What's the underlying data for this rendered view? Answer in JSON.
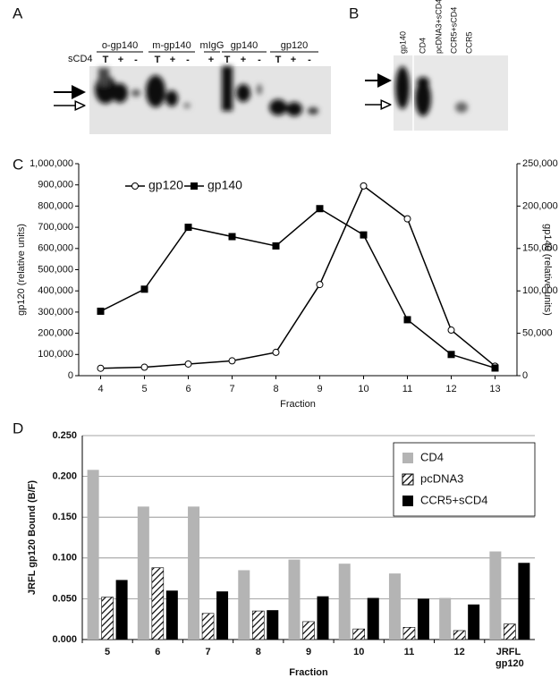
{
  "panels": {
    "A": {
      "label": "A",
      "row_label": "sCD4",
      "groups": [
        "o-gp140",
        "m-gp140",
        "mIgG",
        "gp140",
        "gp120"
      ],
      "lanes": [
        "T",
        "+",
        "-",
        "T",
        "+",
        "-",
        "+",
        "T",
        "+",
        "-",
        "T",
        "+",
        "-"
      ]
    },
    "B": {
      "label": "B",
      "lanes": [
        "gp140",
        "CD4",
        "pcDNA3+sCD4",
        "CCR5+sCD4",
        "CCR5"
      ]
    }
  },
  "chart_data": [
    {
      "type": "line",
      "panel_label": "C",
      "x_label": "Fraction",
      "y_label": "gp120 (relative units)",
      "y2_label": "gp140 (relative units)",
      "categories": [
        "4",
        "5",
        "6",
        "7",
        "8",
        "9",
        "10",
        "11",
        "12",
        "13"
      ],
      "ylim": [
        0,
        1000000
      ],
      "yticks": [
        0,
        {
          "value": 100000,
          "label": "100,000"
        },
        {
          "value": 200000,
          "label": "200,000"
        },
        {
          "value": 300000,
          "label": "300,000"
        },
        {
          "value": 400000,
          "label": "400,000"
        },
        {
          "value": 500000,
          "label": "500,000"
        },
        {
          "value": 600000,
          "label": "600,000"
        },
        {
          "value": 700000,
          "label": "700,000"
        },
        {
          "value": 800000,
          "label": "800,000"
        },
        {
          "value": 900000,
          "label": "900,000"
        },
        {
          "value": 1000000,
          "label": "1,000,000"
        }
      ],
      "y2lim": [
        0,
        250000
      ],
      "y2ticks": [
        0,
        {
          "value": 50000,
          "label": "50,000"
        },
        {
          "value": 100000,
          "label": "100,000"
        },
        {
          "value": 150000,
          "label": "150,000"
        },
        {
          "value": 200000,
          "label": "200,000"
        },
        {
          "value": 250000,
          "label": "250,000"
        }
      ],
      "grid": false,
      "legend": "top-left",
      "series": [
        {
          "name": "gp120",
          "color": "#000000",
          "marker": "open-circle",
          "values": [
            35000,
            40000,
            55000,
            70000,
            110000,
            430000,
            895000,
            740000,
            215000,
            45000
          ]
        },
        {
          "name": "gp140",
          "color": "#000000",
          "marker": "filled-square",
          "axis": "y2",
          "values": [
            76000,
            102000,
            175000,
            164000,
            153000,
            197000,
            166000,
            66000,
            25000,
            9000
          ]
        }
      ]
    },
    {
      "type": "bar",
      "panel_label": "D",
      "x_label": "Fraction",
      "y_label": "JRFL gp120 Bound (B/F)",
      "categories": [
        "5",
        "6",
        "7",
        "8",
        "9",
        "10",
        "11",
        "12",
        "JRFL gp120"
      ],
      "ylim": [
        0,
        0.25
      ],
      "yticks": [
        {
          "value": 0,
          "label": "0.000"
        },
        {
          "value": 0.05,
          "label": "0.050"
        },
        {
          "value": 0.1,
          "label": "0.100"
        },
        {
          "value": 0.15,
          "label": "0.150"
        },
        {
          "value": 0.2,
          "label": "0.200"
        },
        {
          "value": 0.25,
          "label": "0.250"
        }
      ],
      "grid": true,
      "legend": "top-right",
      "series": [
        {
          "name": "CD4",
          "color": "#b4b4b4",
          "values": [
            0.208,
            0.163,
            0.163,
            0.085,
            0.098,
            0.093,
            0.081,
            0.051,
            0.108
          ]
        },
        {
          "name": "pcDNA3",
          "color": "#ffffff",
          "hatch": true,
          "values": [
            0.052,
            0.088,
            0.032,
            0.035,
            0.022,
            0.013,
            0.015,
            0.011,
            0.019
          ]
        },
        {
          "name": "CCR5+sCD4",
          "color": "#000000",
          "values": [
            0.073,
            0.06,
            0.059,
            0.036,
            0.053,
            0.051,
            0.05,
            0.043,
            0.094
          ]
        }
      ]
    }
  ]
}
